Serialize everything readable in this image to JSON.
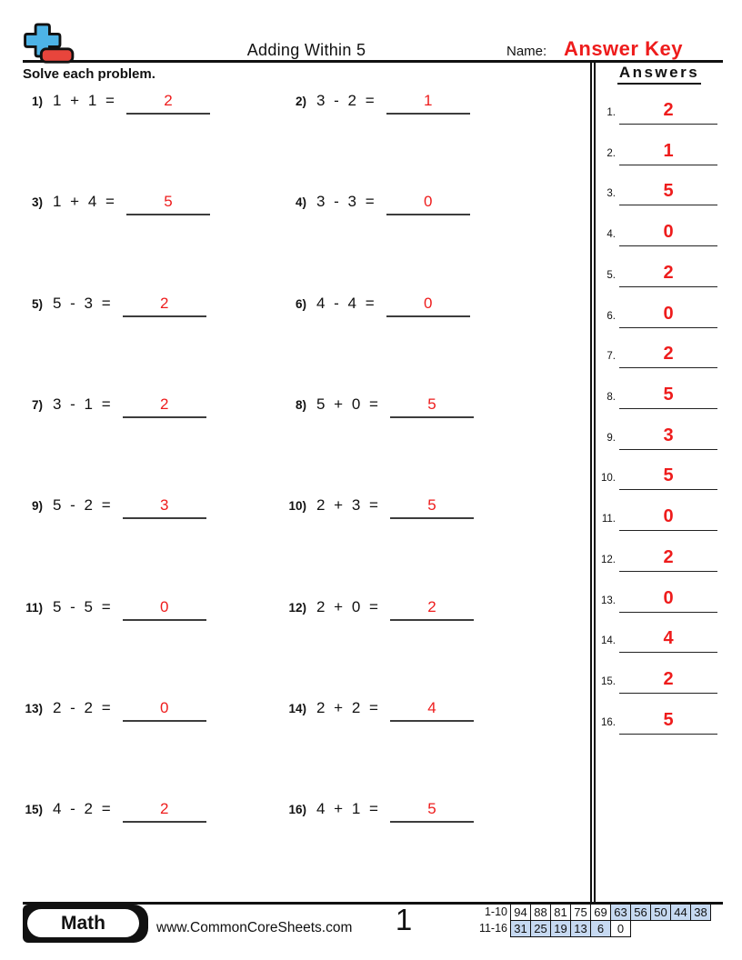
{
  "page": {
    "title": "Adding Within 5",
    "name_label": "Name:",
    "name_value": "Answer Key",
    "instruction": "Solve each problem.",
    "colors": {
      "answer_red": "#ee1c1c",
      "logo_blue": "#4db3e6",
      "logo_red": "#e8453c",
      "table_highlight": "#c6d9f1"
    }
  },
  "problems": [
    {
      "num": "1)",
      "expr": "1 + 1 =",
      "answer": "2"
    },
    {
      "num": "2)",
      "expr": "3 - 2 =",
      "answer": "1"
    },
    {
      "num": "3)",
      "expr": "1 + 4 =",
      "answer": "5"
    },
    {
      "num": "4)",
      "expr": "3 - 3 =",
      "answer": "0"
    },
    {
      "num": "5)",
      "expr": "5 - 3 =",
      "answer": "2"
    },
    {
      "num": "6)",
      "expr": "4 - 4 =",
      "answer": "0"
    },
    {
      "num": "7)",
      "expr": "3 - 1 =",
      "answer": "2"
    },
    {
      "num": "8)",
      "expr": "5 + 0 =",
      "answer": "5"
    },
    {
      "num": "9)",
      "expr": "5 - 2 =",
      "answer": "3"
    },
    {
      "num": "10)",
      "expr": "2 + 3 =",
      "answer": "5"
    },
    {
      "num": "11)",
      "expr": "5 - 5 =",
      "answer": "0"
    },
    {
      "num": "12)",
      "expr": "2 + 0 =",
      "answer": "2"
    },
    {
      "num": "13)",
      "expr": "2 - 2 =",
      "answer": "0"
    },
    {
      "num": "14)",
      "expr": "2 + 2 =",
      "answer": "4"
    },
    {
      "num": "15)",
      "expr": "4 - 2 =",
      "answer": "2"
    },
    {
      "num": "16)",
      "expr": "4 + 1 =",
      "answer": "5"
    }
  ],
  "answers_panel": {
    "heading": "Answers",
    "items": [
      {
        "num": "1.",
        "value": "2"
      },
      {
        "num": "2.",
        "value": "1"
      },
      {
        "num": "3.",
        "value": "5"
      },
      {
        "num": "4.",
        "value": "0"
      },
      {
        "num": "5.",
        "value": "2"
      },
      {
        "num": "6.",
        "value": "0"
      },
      {
        "num": "7.",
        "value": "2"
      },
      {
        "num": "8.",
        "value": "5"
      },
      {
        "num": "9.",
        "value": "3"
      },
      {
        "num": "10.",
        "value": "5"
      },
      {
        "num": "11.",
        "value": "0"
      },
      {
        "num": "12.",
        "value": "2"
      },
      {
        "num": "13.",
        "value": "0"
      },
      {
        "num": "14.",
        "value": "4"
      },
      {
        "num": "15.",
        "value": "2"
      },
      {
        "num": "16.",
        "value": "5"
      }
    ]
  },
  "footer": {
    "subject_label": "Math",
    "website": "www.CommonCoreSheets.com",
    "page_number": "1",
    "score_table": {
      "rows": [
        {
          "label": "1-10",
          "cells": [
            {
              "v": "94",
              "hl": false
            },
            {
              "v": "88",
              "hl": false
            },
            {
              "v": "81",
              "hl": false
            },
            {
              "v": "75",
              "hl": false
            },
            {
              "v": "69",
              "hl": false
            },
            {
              "v": "63",
              "hl": true
            },
            {
              "v": "56",
              "hl": true
            },
            {
              "v": "50",
              "hl": true
            },
            {
              "v": "44",
              "hl": true
            },
            {
              "v": "38",
              "hl": true
            }
          ]
        },
        {
          "label": "11-16",
          "cells": [
            {
              "v": "31",
              "hl": true
            },
            {
              "v": "25",
              "hl": true
            },
            {
              "v": "19",
              "hl": true
            },
            {
              "v": "13",
              "hl": true
            },
            {
              "v": "6",
              "hl": true
            },
            {
              "v": "0",
              "hl": false
            }
          ]
        }
      ]
    }
  }
}
